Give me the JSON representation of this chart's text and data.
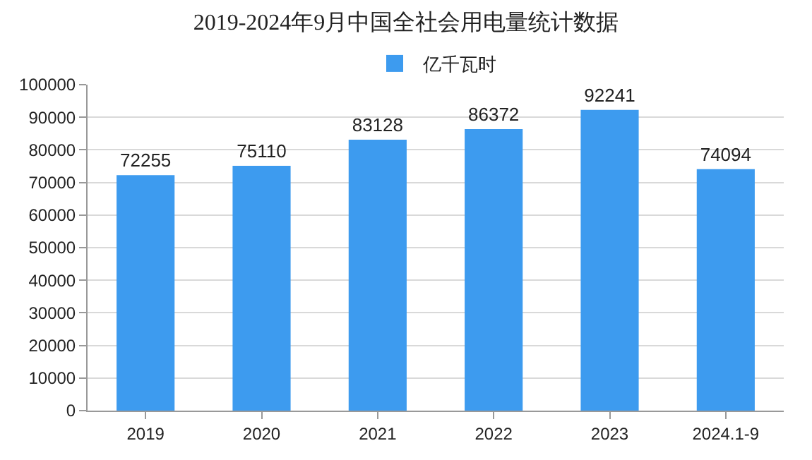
{
  "chart_data": {
    "type": "bar",
    "title": "2019-2024年9月中国全社会用电量统计数据",
    "categories": [
      "2019",
      "2020",
      "2021",
      "2022",
      "2023",
      "2024.1-9"
    ],
    "series": [
      {
        "name": "亿千瓦时",
        "color": "#3d9bef",
        "values": [
          72255,
          75110,
          83128,
          86372,
          92241,
          74094
        ]
      }
    ],
    "ylim": [
      0,
      100000
    ],
    "yticks": [
      0,
      10000,
      20000,
      30000,
      40000,
      50000,
      60000,
      70000,
      80000,
      90000,
      100000
    ],
    "grid": "y",
    "legend": "top",
    "data_labels": true
  }
}
